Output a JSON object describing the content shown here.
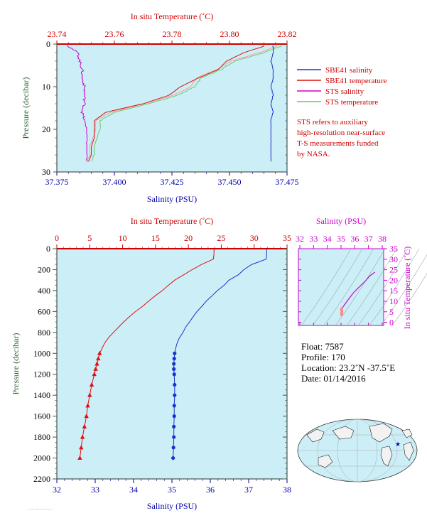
{
  "colors": {
    "plot_bg": "#cceef7",
    "red": "#cc0000",
    "blue": "#0000aa",
    "green_axis": "#336633",
    "magenta": "#cc00cc",
    "sbe_salinity": "#1a33cc",
    "sbe_temperature": "#dd1111",
    "sts_salinity": "#cc00cc",
    "sts_temperature": "#66cc66",
    "sts_temperature_pink": "#ff9999"
  },
  "top_panel": {
    "top_axis_label": "In situ Temperature (˚C)",
    "bottom_axis_label": "Salinity (PSU)",
    "left_axis_label": "Pressure (decibar)",
    "temp_ticks": [
      "23.74",
      "23.76",
      "23.78",
      "23.80",
      "23.82"
    ],
    "sal_ticks": [
      "37.375",
      "37.400",
      "37.425",
      "37.450",
      "37.475"
    ],
    "pres_ticks": [
      "0",
      "10",
      "20",
      "30"
    ],
    "legend": [
      {
        "label": "SBE41 salinity",
        "color": "#1a33cc"
      },
      {
        "label": "SBE41 temperature",
        "color": "#dd1111"
      },
      {
        "label": "STS salinity",
        "color": "#cc00cc"
      },
      {
        "label": "STS temperature",
        "color": "#66cc66"
      }
    ],
    "note_lines": [
      "STS refers to auxiliary",
      "high-resolution near-surface",
      "T-S measurements funded",
      "by NASA."
    ]
  },
  "main_panel": {
    "top_axis_label": "In situ Temperature (˚C)",
    "bottom_axis_label": "Salinity (PSU)",
    "left_axis_label": "Pressure (decibar)",
    "temp_ticks": [
      "0",
      "5",
      "10",
      "15",
      "20",
      "25",
      "30",
      "35"
    ],
    "sal_ticks": [
      "32",
      "33",
      "34",
      "35",
      "36",
      "37",
      "38"
    ],
    "pres_ticks": [
      "0",
      "200",
      "400",
      "600",
      "800",
      "1000",
      "1200",
      "1400",
      "1600",
      "1800",
      "2000",
      "2200"
    ]
  },
  "ts_panel": {
    "top_axis_label": "Salinity (PSU)",
    "right_axis_label": "In situ Temperature (˚C)",
    "sal_ticks": [
      "32",
      "33",
      "34",
      "35",
      "36",
      "37",
      "38"
    ],
    "temp_ticks": [
      "0",
      "5",
      "10",
      "15",
      "20",
      "25",
      "30",
      "35"
    ]
  },
  "info": {
    "float": "Float:  7587",
    "profile": "Profile:  170",
    "location": "Location:  23.2˚N  -37.5˚E",
    "date": "Date:  01/14/2016"
  },
  "chart_data": [
    {
      "type": "line",
      "name": "top-panel-near-surface",
      "xlim_temperature": [
        23.74,
        23.82
      ],
      "xlim_salinity": [
        37.375,
        37.475
      ],
      "ylim_pressure": [
        30,
        0
      ],
      "series": [
        {
          "name": "SBE41 salinity",
          "pressure": [
            0.5,
            2,
            4,
            6,
            8,
            10,
            12,
            14,
            16,
            18,
            20,
            22,
            24,
            26,
            27.5
          ],
          "values": [
            37.469,
            37.469,
            37.468,
            37.469,
            37.469,
            37.468,
            37.469,
            37.468,
            37.469,
            37.468,
            37.468,
            37.468,
            37.468,
            37.468,
            37.468
          ]
        },
        {
          "name": "SBE41 temperature",
          "pressure": [
            0.5,
            2,
            4,
            6,
            8,
            10,
            12,
            14,
            16,
            18,
            20,
            22,
            24,
            26,
            27.5
          ],
          "values": [
            23.812,
            23.805,
            23.799,
            23.796,
            23.789,
            23.783,
            23.779,
            23.77,
            23.757,
            23.753,
            23.753,
            23.753,
            23.752,
            23.752,
            23.751
          ]
        },
        {
          "name": "STS salinity",
          "pressure": [
            0.5,
            2,
            4,
            6,
            8,
            10,
            12,
            14,
            16,
            18,
            20,
            22,
            24,
            26,
            27.5
          ],
          "values": [
            37.38,
            37.384,
            37.385,
            37.386,
            37.386,
            37.387,
            37.387,
            37.387,
            37.386,
            37.387,
            37.388,
            37.388,
            37.388,
            37.388,
            37.388
          ]
        },
        {
          "name": "STS temperature",
          "pressure": [
            0.5,
            2,
            4,
            6,
            8,
            10,
            12,
            14,
            16,
            18,
            20,
            22,
            24,
            26,
            27.5
          ],
          "values": [
            23.818,
            23.812,
            23.802,
            23.797,
            23.79,
            23.788,
            23.782,
            23.772,
            23.76,
            23.755,
            23.755,
            23.754,
            23.753,
            23.753,
            23.752
          ]
        }
      ]
    },
    {
      "type": "line",
      "name": "main-profile",
      "xlim_temperature": [
        0,
        35
      ],
      "xlim_salinity": [
        32,
        38
      ],
      "ylim_pressure": [
        2200,
        0
      ],
      "series": [
        {
          "name": "temperature",
          "pressure": [
            0,
            50,
            100,
            150,
            200,
            250,
            300,
            350,
            400,
            450,
            500,
            550,
            600,
            650,
            700,
            750,
            800,
            850,
            900,
            950,
            1000,
            1050,
            1100,
            1150,
            1200,
            1300,
            1400,
            1500,
            1600,
            1700,
            1800,
            1900,
            2000
          ],
          "values": [
            23.9,
            23.9,
            23.8,
            22.0,
            20.5,
            19.3,
            18.0,
            17.0,
            16.0,
            15.0,
            14.0,
            13.0,
            12.0,
            11.0,
            10.1,
            9.3,
            8.6,
            7.9,
            7.3,
            6.9,
            6.5,
            6.3,
            6.1,
            5.9,
            5.7,
            5.3,
            5.0,
            4.7,
            4.5,
            4.2,
            3.9,
            3.7,
            3.5
          ]
        },
        {
          "name": "salinity",
          "pressure": [
            0,
            50,
            100,
            150,
            200,
            250,
            300,
            350,
            400,
            450,
            500,
            550,
            600,
            650,
            700,
            750,
            800,
            850,
            900,
            950,
            1000,
            1050,
            1100,
            1150,
            1200,
            1300,
            1400,
            1500,
            1600,
            1700,
            1800,
            1900,
            2000
          ],
          "values": [
            37.47,
            37.47,
            37.46,
            37.08,
            36.88,
            36.72,
            36.5,
            36.35,
            36.2,
            36.05,
            35.9,
            35.78,
            35.65,
            35.55,
            35.45,
            35.36,
            35.28,
            35.21,
            35.15,
            35.1,
            35.07,
            35.06,
            35.05,
            35.05,
            35.06,
            35.07,
            35.07,
            35.06,
            35.06,
            35.05,
            35.05,
            35.04,
            35.03
          ]
        }
      ]
    },
    {
      "type": "line",
      "name": "ts-diagram",
      "xlim_salinity": [
        32,
        38
      ],
      "ylim_temperature": [
        -1,
        35
      ],
      "series": [
        {
          "name": "profile",
          "salinity": [
            37.47,
            37.08,
            36.72,
            36.35,
            35.9,
            35.55,
            35.28,
            35.1,
            35.06,
            35.05,
            35.03
          ],
          "temperature": [
            23.9,
            22.0,
            19.3,
            17.0,
            14.0,
            11.0,
            8.6,
            6.9,
            6.3,
            5.0,
            3.5
          ]
        }
      ]
    }
  ]
}
